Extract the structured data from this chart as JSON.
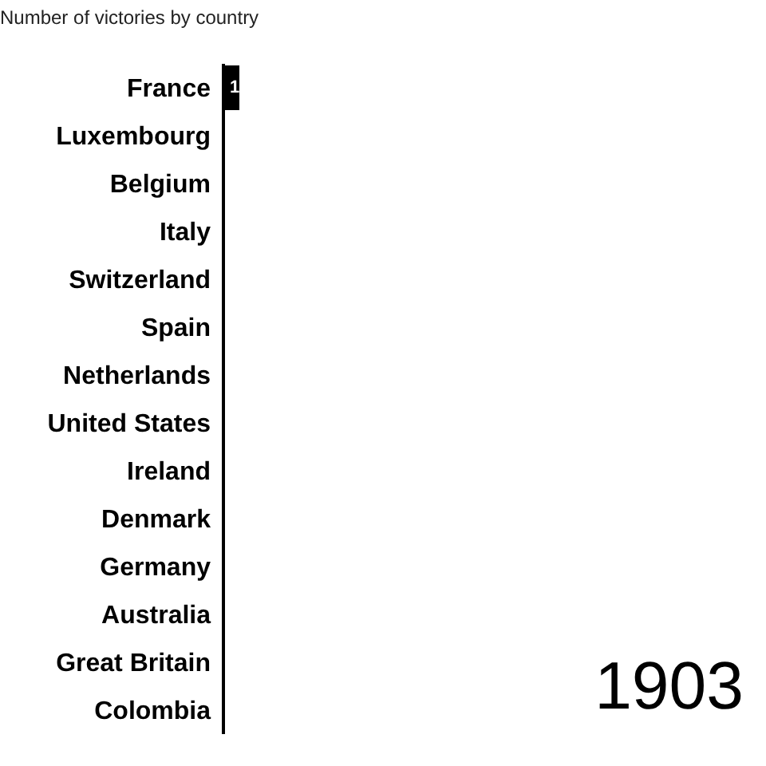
{
  "chart_data": {
    "type": "bar",
    "orientation": "horizontal",
    "tick_labels": "y",
    "title": "Number of victories by country",
    "categories": [
      "France",
      "Luxembourg",
      "Belgium",
      "Italy",
      "Switzerland",
      "Spain",
      "Netherlands",
      "United States",
      "Ireland",
      "Denmark",
      "Germany",
      "Australia",
      "Great Britain",
      "Colombia"
    ],
    "values": [
      1,
      0,
      0,
      0,
      0,
      0,
      0,
      0,
      0,
      0,
      0,
      0,
      0,
      0
    ],
    "value_labels": [
      "1",
      null,
      null,
      null,
      null,
      null,
      null,
      null,
      null,
      null,
      null,
      null,
      null,
      null
    ],
    "color": "#000000",
    "annotations": [
      "1903"
    ],
    "legend": false
  }
}
